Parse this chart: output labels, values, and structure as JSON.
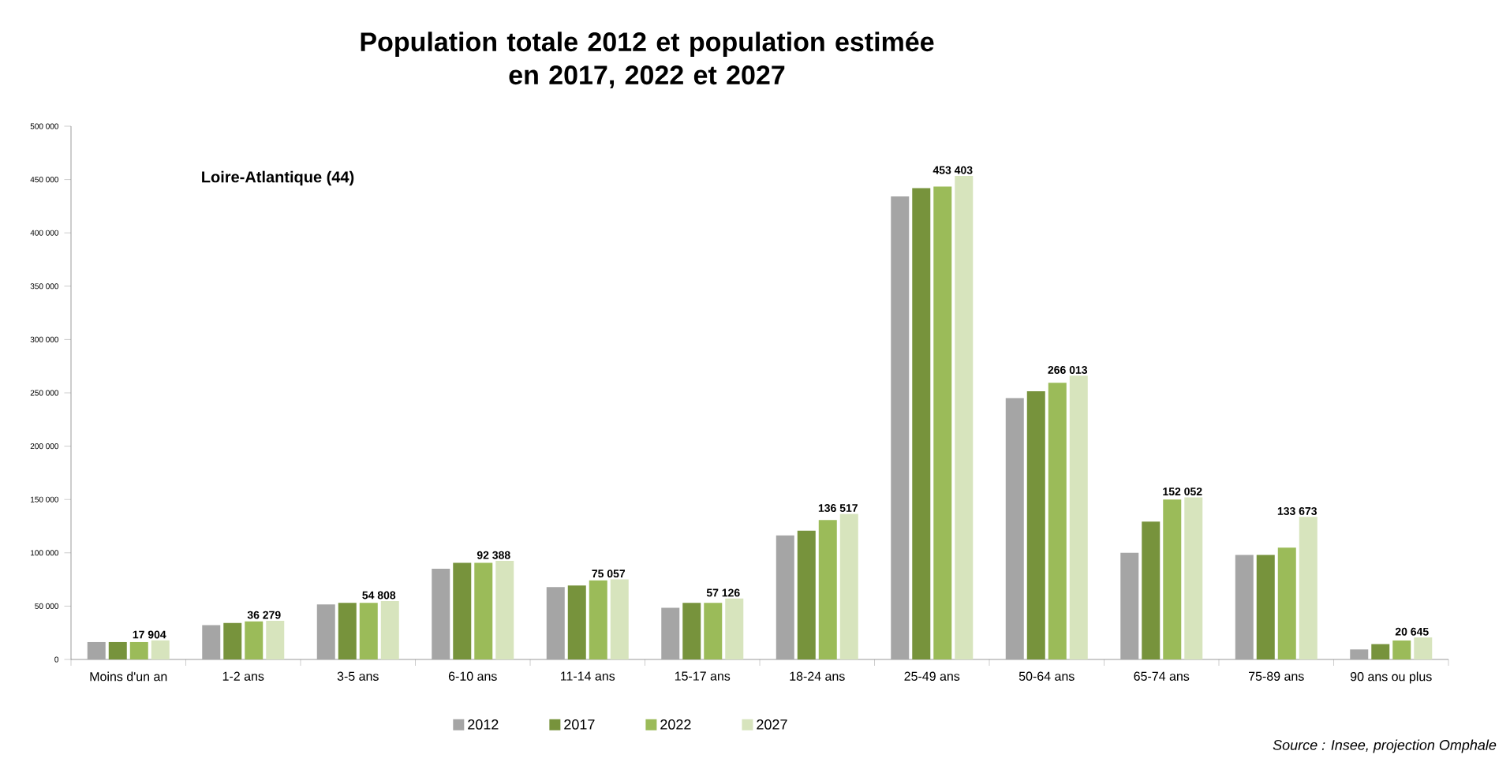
{
  "chart_data": {
    "type": "bar",
    "title": "Population totale 2012 et population estimée\nen 2017, 2022 et 2027",
    "categories": [
      "Moins d'un an",
      "1-2 ans",
      "3-5 ans",
      "6-10 ans",
      "11-14 ans",
      "15-17 ans",
      "18-24 ans",
      "25-49 ans",
      "50-64 ans",
      "65-74 ans",
      "75-89 ans",
      "90 ans ou plus"
    ],
    "series": [
      {
        "name": "2012",
        "color": "#a5a5a5",
        "values": [
          16300,
          32200,
          51500,
          85100,
          67800,
          48500,
          116300,
          434100,
          245000,
          100000,
          98000,
          9400
        ]
      },
      {
        "name": "2017",
        "color": "#77933c",
        "values": [
          16300,
          34200,
          53000,
          90600,
          69300,
          53000,
          120800,
          442000,
          251500,
          129200,
          98000,
          14400
        ]
      },
      {
        "name": "2022",
        "color": "#9bbb59",
        "values": [
          16300,
          35600,
          53000,
          90600,
          74200,
          53000,
          130700,
          443500,
          259400,
          150000,
          104900,
          17800
        ]
      },
      {
        "name": "2027",
        "color": "#d7e4bd",
        "values": [
          17904,
          36279,
          54808,
          92388,
          75057,
          57126,
          136517,
          453403,
          266013,
          152052,
          133673,
          20645
        ],
        "value_labels": [
          "17 904",
          "36 279",
          "54 808",
          "92 388",
          "75 057",
          "57 126",
          "136 517",
          "453 403",
          "266 013",
          "152 052",
          "133 673",
          "20 645"
        ]
      }
    ],
    "ylim": [
      0,
      500000
    ],
    "yticks": [
      {
        "value": 0,
        "label": "0"
      },
      {
        "value": 50000,
        "label": "50 000"
      },
      {
        "value": 100000,
        "label": "100 000"
      },
      {
        "value": 150000,
        "label": "150 000"
      },
      {
        "value": 200000,
        "label": "200 000"
      },
      {
        "value": 250000,
        "label": "250 000"
      },
      {
        "value": 300000,
        "label": "300 000"
      },
      {
        "value": 350000,
        "label": "350 000"
      },
      {
        "value": 400000,
        "label": "400 000"
      },
      {
        "value": 450000,
        "label": "450 000"
      },
      {
        "value": 500000,
        "label": "500 000"
      }
    ],
    "grid": false,
    "legend": "bottom",
    "annotations": [
      "Loire-Atlantique (44)",
      "Source : Insee, projection Omphale"
    ]
  }
}
